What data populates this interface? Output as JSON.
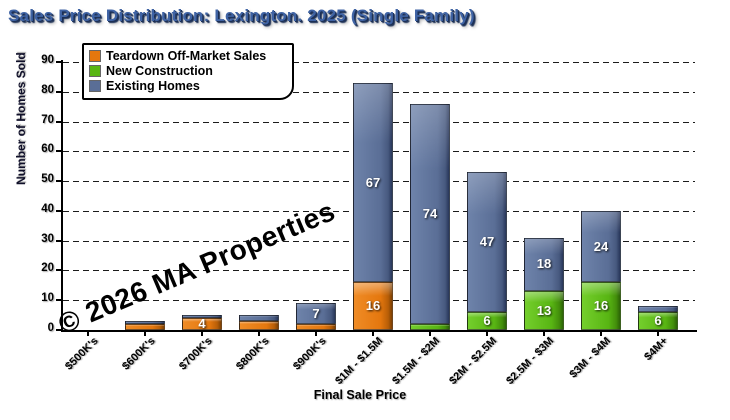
{
  "chart_data": {
    "type": "bar",
    "stacked": true,
    "title": "Sales Price Distribution: Lexington. 2025 (Single Family)",
    "xlabel": "Final Sale Price",
    "ylabel": "Number of Homes Sold",
    "ylim": [
      0,
      90
    ],
    "ytick_step": 10,
    "grid": "horizontal-dashed",
    "legend_position": "top-left",
    "watermark": "© 2026 MA Properties",
    "bar_label_min_value": 4,
    "categories": [
      "$500K's",
      "$600K's",
      "$700K's",
      "$800K's",
      "$900K's",
      "$1M - $1.5M",
      "$1.5M - $2M",
      "$2M - $2.5M",
      "$2.5M - $3M",
      "$3M - $4M",
      "$4M+"
    ],
    "series": [
      {
        "name": "Teardown Off-Market Sales",
        "key": "teardown",
        "color": "#e4770e",
        "values": [
          0,
          2,
          4,
          3,
          2,
          16,
          0,
          0,
          0,
          0,
          0
        ]
      },
      {
        "name": "New Construction",
        "key": "new",
        "color": "#58b513",
        "values": [
          0,
          0,
          0,
          0,
          0,
          0,
          2,
          6,
          13,
          16,
          6
        ]
      },
      {
        "name": "Existing Homes",
        "key": "existing",
        "color": "#5a6e96",
        "values": [
          0,
          1,
          1,
          2,
          7,
          67,
          74,
          47,
          18,
          24,
          2
        ]
      }
    ],
    "totals": [
      0,
      3,
      5,
      5,
      9,
      83,
      76,
      53,
      31,
      40,
      8
    ],
    "colors": {
      "title": "#3f63a4",
      "axis": "#000000",
      "teardown": "#e4770e",
      "new_construction": "#58b513",
      "existing_homes": "#5a6e96",
      "bar_value_text": "#ffffff",
      "watermark_text": "#000000"
    }
  }
}
